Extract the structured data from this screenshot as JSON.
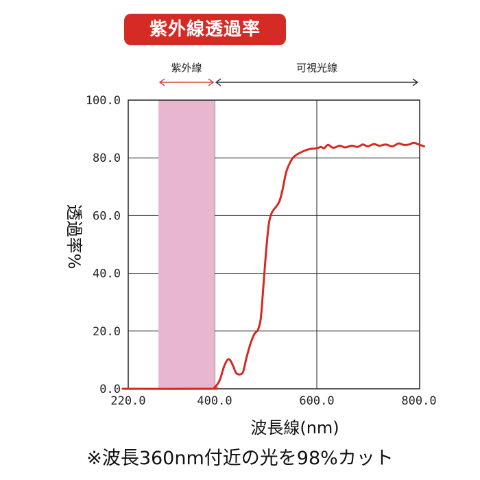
{
  "title": "紫外線透過率",
  "footnote": "※波長360nm付近の光を98%カット",
  "chart_data": {
    "type": "line",
    "xlabel": "波長線(nm)",
    "ylabel": "透過率%",
    "xlim": [
      220,
      810
    ],
    "ylim": [
      0,
      100
    ],
    "x_ticks": [
      {
        "value": 220,
        "label": "220.0"
      },
      {
        "value": 400,
        "label": "400.0"
      },
      {
        "value": 600,
        "label": "600.0"
      },
      {
        "value": 800,
        "label": "800.0"
      }
    ],
    "y_ticks": [
      {
        "value": 0,
        "label": "0.0"
      },
      {
        "value": 20,
        "label": "20.0"
      },
      {
        "value": 40,
        "label": "40.0"
      },
      {
        "value": 60,
        "label": "60.0"
      },
      {
        "value": 80,
        "label": "80.0"
      },
      {
        "value": 100,
        "label": "100.0"
      }
    ],
    "grid": true,
    "regions": [
      {
        "label": "紫外線",
        "from": 290,
        "to": 400,
        "shaded": true,
        "color": "#e9b6cf",
        "arrow_color": "#d9423b"
      },
      {
        "label": "可視光線",
        "from": 400,
        "to": 800,
        "shaded": false,
        "arrow_color": "#333333"
      }
    ],
    "series": [
      {
        "color": "#d7281f",
        "points": [
          [
            220,
            0
          ],
          [
            390,
            0
          ],
          [
            400,
            0.5
          ],
          [
            410,
            3
          ],
          [
            418,
            7.5
          ],
          [
            425,
            10
          ],
          [
            430,
            10
          ],
          [
            436,
            8
          ],
          [
            442,
            5.5
          ],
          [
            450,
            5
          ],
          [
            456,
            6
          ],
          [
            462,
            10.5
          ],
          [
            470,
            15.5
          ],
          [
            478,
            19
          ],
          [
            485,
            20.5
          ],
          [
            490,
            24
          ],
          [
            494,
            32
          ],
          [
            500,
            46
          ],
          [
            506,
            57
          ],
          [
            512,
            61
          ],
          [
            520,
            63
          ],
          [
            527,
            65
          ],
          [
            533,
            69
          ],
          [
            540,
            75
          ],
          [
            548,
            78.5
          ],
          [
            556,
            80.5
          ],
          [
            570,
            82
          ],
          [
            585,
            83
          ],
          [
            600,
            83.3
          ],
          [
            608,
            83.8
          ],
          [
            614,
            83.3
          ],
          [
            622,
            84.5
          ],
          [
            632,
            83.5
          ],
          [
            645,
            84.2
          ],
          [
            655,
            83.6
          ],
          [
            668,
            84.2
          ],
          [
            680,
            83.8
          ],
          [
            690,
            84.6
          ],
          [
            700,
            84.0
          ],
          [
            712,
            84.8
          ],
          [
            722,
            84.2
          ],
          [
            735,
            84.6
          ],
          [
            748,
            84.0
          ],
          [
            760,
            85.0
          ],
          [
            770,
            84.5
          ],
          [
            780,
            84.6
          ],
          [
            790,
            85.2
          ],
          [
            800,
            84.6
          ],
          [
            810,
            84.0
          ]
        ]
      }
    ]
  }
}
